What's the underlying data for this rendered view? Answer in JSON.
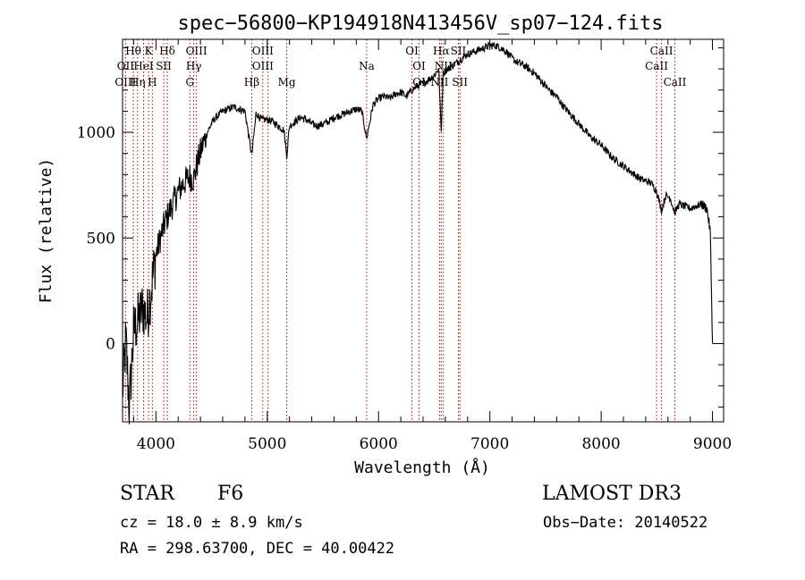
{
  "chart_data": {
    "type": "line",
    "title": "spec−56800−KP194918N413456V_sp07−124.fits",
    "xlabel": "Wavelength (Å)",
    "ylabel": "Flux (relative)",
    "xlim": [
      3700,
      9100
    ],
    "ylim": [
      -370,
      1440
    ],
    "x_ticks": [
      4000,
      5000,
      6000,
      7000,
      8000,
      9000
    ],
    "x_tick_labels": [
      "4000",
      "5000",
      "6000",
      "7000",
      "8000",
      "9000"
    ],
    "y_ticks": [
      0,
      500,
      1000
    ],
    "y_tick_labels": [
      "0",
      "500",
      "1000"
    ],
    "series": [
      {
        "name": "spectrum",
        "x": [
          3700,
          3730,
          3760,
          3800,
          3840,
          3880,
          3920,
          3960,
          4000,
          4050,
          4100,
          4150,
          4200,
          4250,
          4300,
          4340,
          4380,
          4420,
          4470,
          4520,
          4560,
          4600,
          4650,
          4700,
          4750,
          4800,
          4861,
          4900,
          4950,
          5000,
          5050,
          5100,
          5150,
          5175,
          5200,
          5250,
          5300,
          5350,
          5400,
          5450,
          5500,
          5550,
          5600,
          5650,
          5700,
          5750,
          5800,
          5850,
          5893,
          5950,
          6000,
          6050,
          6100,
          6150,
          6200,
          6250,
          6300,
          6350,
          6400,
          6450,
          6500,
          6540,
          6563,
          6580,
          6600,
          6650,
          6700,
          6750,
          6800,
          6850,
          6900,
          6950,
          7000,
          7050,
          7100,
          7150,
          7200,
          7250,
          7300,
          7350,
          7400,
          7450,
          7500,
          7550,
          7600,
          7650,
          7700,
          7750,
          7800,
          7850,
          7900,
          7950,
          8000,
          8050,
          8100,
          8150,
          8200,
          8250,
          8300,
          8350,
          8400,
          8450,
          8500,
          8542,
          8580,
          8620,
          8662,
          8700,
          8750,
          8800,
          8850,
          8900,
          8950,
          8980,
          9000
        ],
        "y": [
          -230,
          20,
          -300,
          60,
          110,
          170,
          120,
          270,
          420,
          520,
          600,
          660,
          720,
          760,
          790,
          780,
          870,
          940,
          1010,
          1060,
          1080,
          1100,
          1110,
          1120,
          1110,
          1100,
          890,
          1090,
          1060,
          1060,
          1050,
          1030,
          1010,
          890,
          1030,
          1050,
          1070,
          1060,
          1040,
          1030,
          1040,
          1050,
          1070,
          1080,
          1090,
          1100,
          1110,
          1100,
          970,
          1130,
          1160,
          1170,
          1160,
          1180,
          1190,
          1170,
          1200,
          1220,
          1230,
          1250,
          1270,
          1300,
          1000,
          1280,
          1290,
          1310,
          1330,
          1350,
          1370,
          1380,
          1390,
          1400,
          1410,
          1410,
          1400,
          1380,
          1350,
          1330,
          1320,
          1300,
          1280,
          1250,
          1220,
          1190,
          1170,
          1130,
          1100,
          1070,
          1040,
          1010,
          980,
          960,
          940,
          910,
          880,
          860,
          840,
          820,
          800,
          780,
          770,
          760,
          720,
          630,
          700,
          690,
          620,
          660,
          650,
          640,
          650,
          660,
          640,
          530,
          0
        ]
      }
    ],
    "lines_top": [
      {
        "label": "Hθ",
        "x": 3797
      },
      {
        "label": "K",
        "x": 3934
      },
      {
        "label": "Hδ",
        "x": 4102
      },
      {
        "label": "OIII",
        "x": 4364
      },
      {
        "label": "OIII",
        "x": 4960
      },
      {
        "label": "OI",
        "x": 6300
      },
      {
        "label": "Hα",
        "x": 6563
      },
      {
        "label": "SII",
        "x": 6717
      },
      {
        "label": "CaII",
        "x": 8542
      }
    ],
    "lines_mid": [
      {
        "label": "OII",
        "x": 3727
      },
      {
        "label": "HeI",
        "x": 3889
      },
      {
        "label": "SII",
        "x": 4070
      },
      {
        "label": "Hγ",
        "x": 4340
      },
      {
        "label": "OIII",
        "x": 4960
      },
      {
        "label": "Na",
        "x": 5893
      },
      {
        "label": "NII",
        "x": 6583
      },
      {
        "label": "OI",
        "x": 6364
      },
      {
        "label": "CaII",
        "x": 8498
      }
    ],
    "lines_low": [
      {
        "label": "OIII",
        "x": 3727
      },
      {
        "label": "Hη",
        "x": 3835
      },
      {
        "label": "H",
        "x": 3968
      },
      {
        "label": "G",
        "x": 4305
      },
      {
        "label": "Hβ",
        "x": 4861
      },
      {
        "label": "Mg",
        "x": 5175
      },
      {
        "label": "OI",
        "x": 6364
      },
      {
        "label": "NII",
        "x": 6548
      },
      {
        "label": "SII",
        "x": 6731
      },
      {
        "label": "CaII",
        "x": 8662
      }
    ],
    "line_positions": [
      3727,
      3797,
      3835,
      3889,
      3934,
      3968,
      4070,
      4102,
      4305,
      4340,
      4364,
      4861,
      4960,
      5007,
      5175,
      5893,
      6300,
      6364,
      6548,
      6563,
      6583,
      6717,
      6731,
      8498,
      8542,
      8662
    ]
  },
  "info": {
    "object_class": "STAR",
    "subclass": "F6",
    "survey": "LAMOST DR3",
    "cz": "cz = 18.0 ± 8.9 km/s",
    "obs_date": "Obs−Date: 20140522",
    "coords": "RA = 298.63700, DEC =  40.00422"
  },
  "colors": {
    "line_marker": "#b00000",
    "spectrum": "#000000"
  }
}
